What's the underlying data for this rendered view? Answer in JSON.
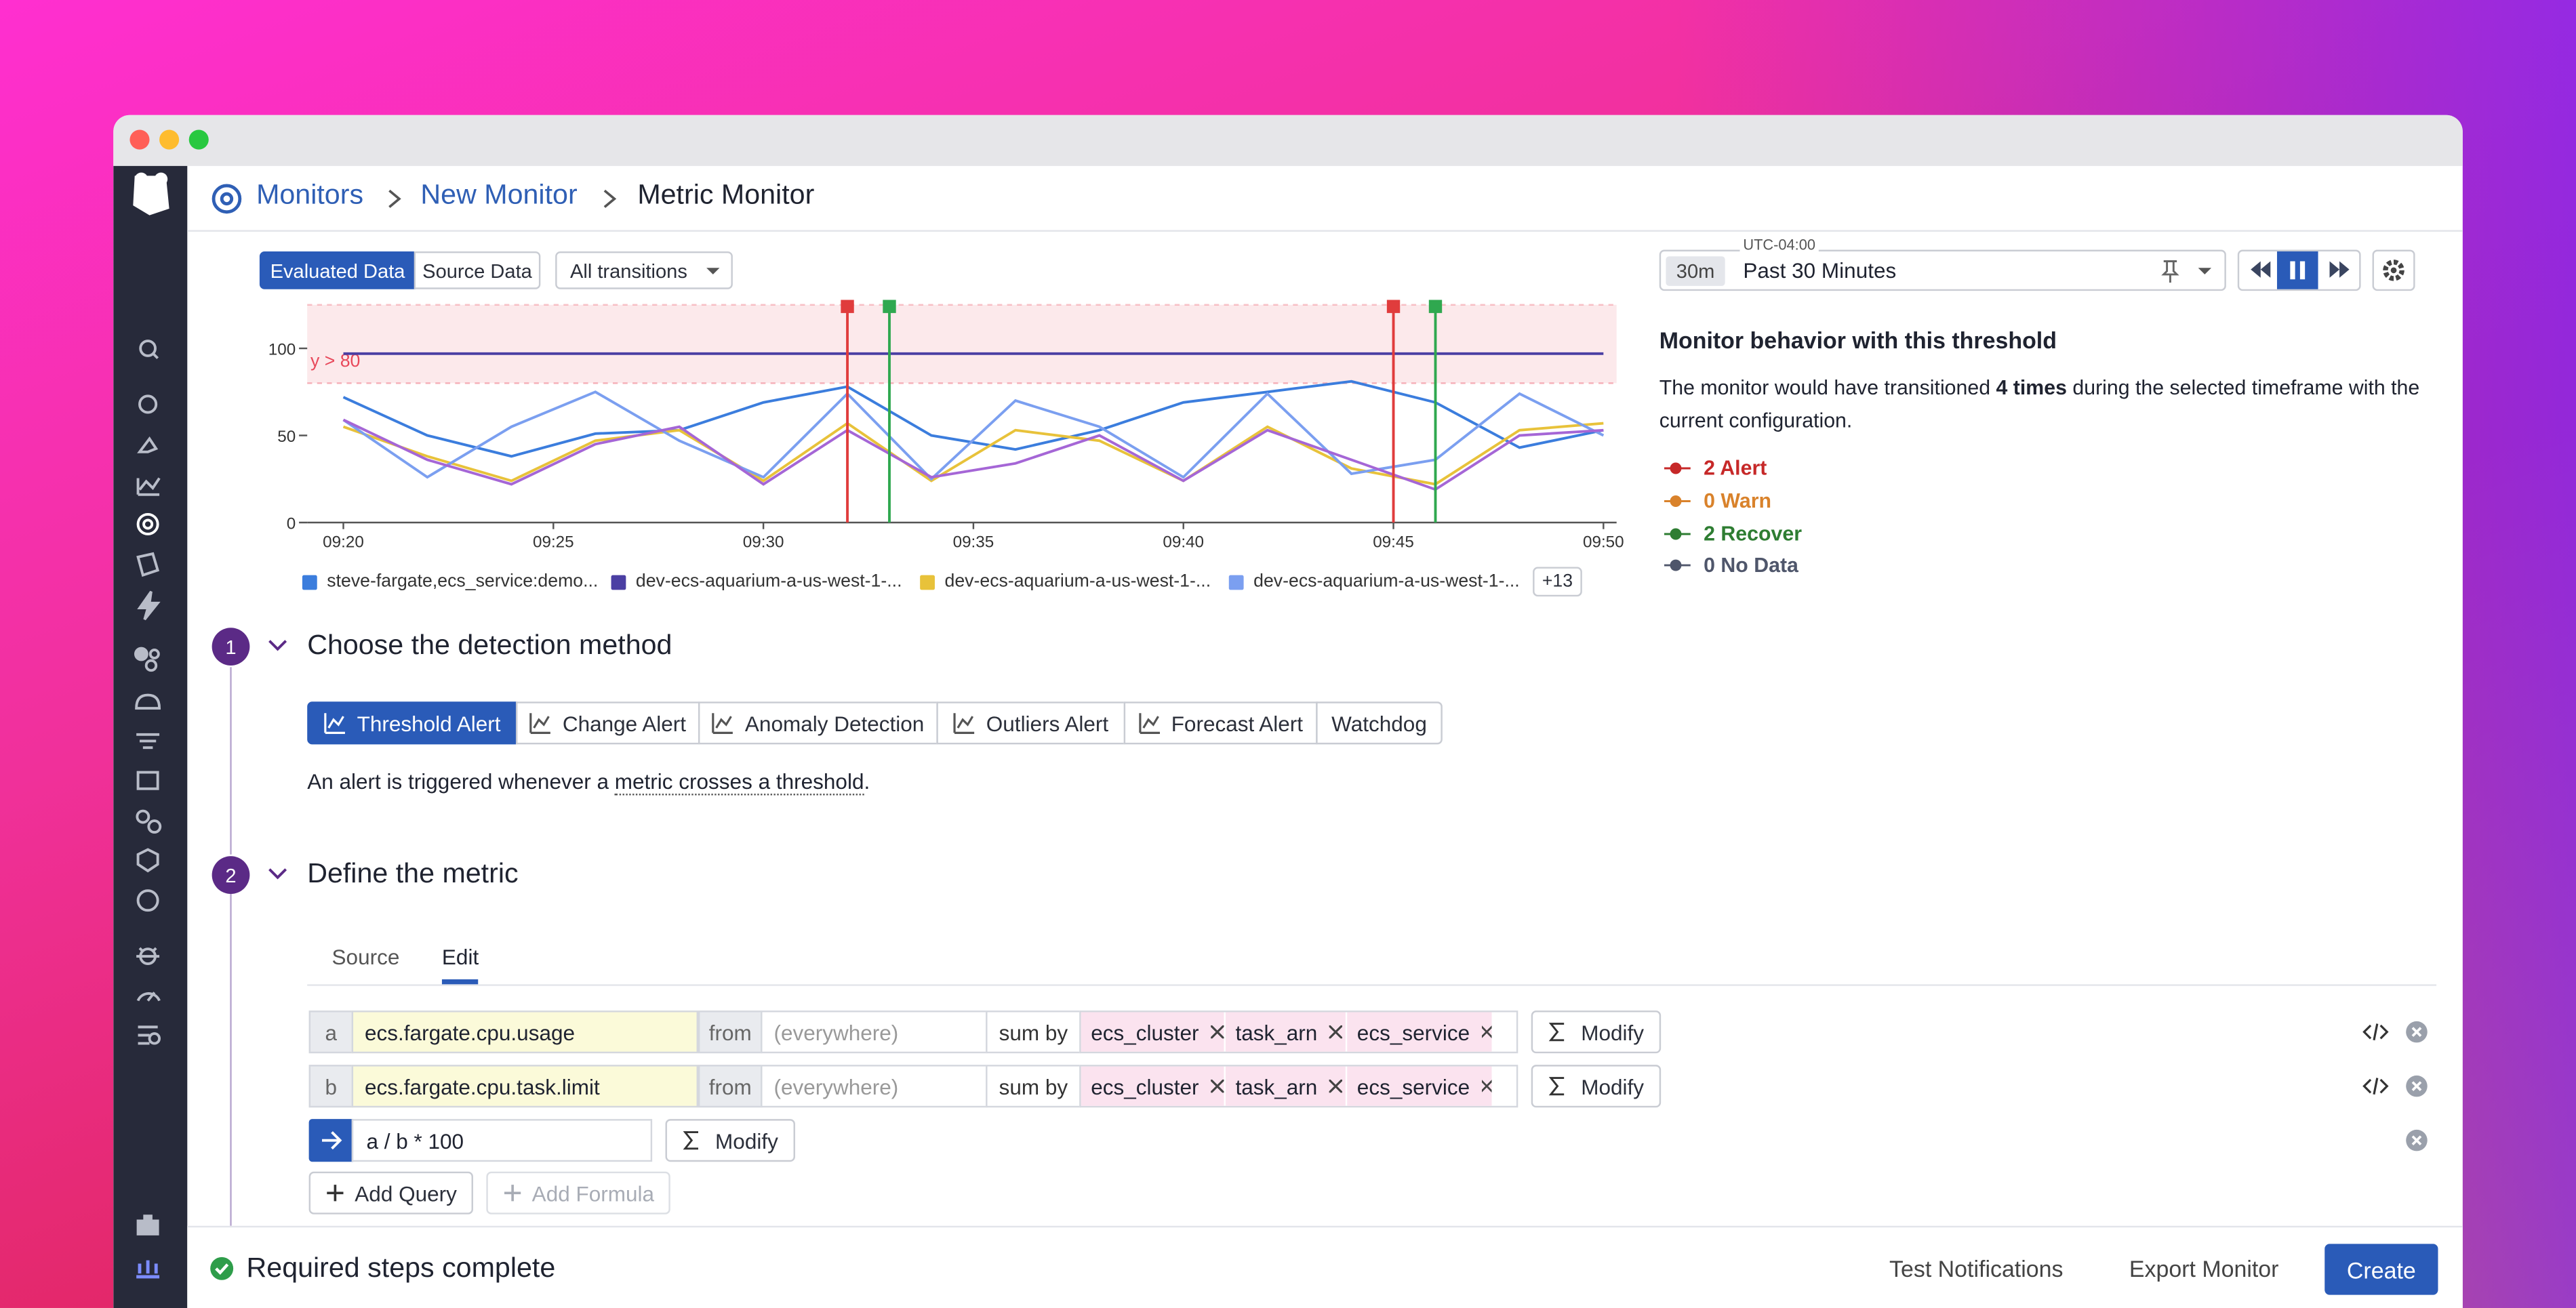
{
  "breadcrumb": [
    "Monitors",
    "New Monitor",
    "Metric Monitor"
  ],
  "view_tabs": [
    "Evaluated Data",
    "Source Data"
  ],
  "transitions_filter": "All transitions",
  "chart_data": {
    "type": "line",
    "x": [
      "09:20",
      "09:22",
      "09:24",
      "09:26",
      "09:28",
      "09:30",
      "09:32",
      "09:34",
      "09:36",
      "09:38",
      "09:40",
      "09:42",
      "09:44",
      "09:46",
      "09:48",
      "09:50"
    ],
    "xlim": [
      "09:20",
      "09:50"
    ],
    "xticks": [
      "09:20",
      "09:25",
      "09:30",
      "09:35",
      "09:40",
      "09:45",
      "09:50"
    ],
    "ylim": [
      0,
      125
    ],
    "yticks": [
      0,
      50,
      100
    ],
    "threshold": {
      "label": "y > 80",
      "value": 80,
      "color": "#e8485a"
    },
    "events": [
      {
        "x": "09:32",
        "color": "#e03c3c"
      },
      {
        "x": "09:33",
        "color": "#2fa84f"
      },
      {
        "x": "09:45",
        "color": "#e03c3c"
      },
      {
        "x": "09:46",
        "color": "#2fa84f"
      }
    ],
    "series": [
      {
        "name": "steve-fargate,ecs_service:demo...",
        "color": "#3b7ddd",
        "values": [
          72,
          50,
          38,
          51,
          53,
          69,
          78,
          50,
          42,
          53,
          69,
          75,
          81,
          69,
          43,
          53
        ]
      },
      {
        "name": "dev-ecs-aquarium-a-us-west-1-...",
        "color": "#4b3fa3",
        "values": [
          97,
          97,
          97,
          97,
          97,
          97,
          97,
          97,
          97,
          97,
          97,
          97,
          97,
          97,
          97,
          97
        ]
      },
      {
        "name": "dev-ecs-aquarium-a-us-west-1-...",
        "color": "#e8c23a",
        "values": [
          55,
          38,
          24,
          47,
          53,
          24,
          57,
          24,
          53,
          47,
          24,
          55,
          31,
          22,
          53,
          57
        ]
      },
      {
        "name": "dev-ecs-aquarium-a-us-west-1-...",
        "color": "#7b9ff0",
        "values": [
          59,
          26,
          55,
          75,
          47,
          26,
          74,
          25,
          70,
          55,
          26,
          74,
          28,
          36,
          74,
          50
        ]
      },
      {
        "color": "#a566d6",
        "values": [
          59,
          36,
          22,
          45,
          55,
          22,
          53,
          26,
          34,
          50,
          24,
          53,
          36,
          19,
          50,
          53
        ]
      }
    ],
    "legend_more": "+13"
  },
  "timeframe": {
    "timezone": "UTC-04:00",
    "short": "30m",
    "label": "Past 30 Minutes"
  },
  "behavior": {
    "title": "Monitor behavior with this threshold",
    "text_before": "The monitor would have transitioned ",
    "count": "4 times",
    "text_after": " during the selected timeframe with the current configuration.",
    "states": [
      {
        "label": "2 Alert",
        "color": "#c62828"
      },
      {
        "label": "0 Warn",
        "color": "#d9822b"
      },
      {
        "label": "2 Recover",
        "color": "#2e7d32"
      },
      {
        "label": "0 No Data",
        "color": "#4f566b"
      }
    ]
  },
  "steps": [
    {
      "number": "1",
      "title": "Choose the detection method",
      "methods": [
        "Threshold Alert",
        "Change Alert",
        "Anomaly Detection",
        "Outliers Alert",
        "Forecast Alert",
        "Watchdog"
      ],
      "description_before": "An alert is triggered whenever a ",
      "description_link": "metric crosses a threshold",
      "description_after": "."
    },
    {
      "number": "2",
      "title": "Define the metric",
      "tabs": [
        "Source",
        "Edit"
      ],
      "queries": [
        {
          "letter": "a",
          "metric": "ecs.fargate.cpu.usage",
          "from": "from",
          "scope": "(everywhere)",
          "aggregation": "sum by",
          "tags": [
            "ecs_cluster",
            "task_arn",
            "ecs_service"
          ],
          "modify": "Modify"
        },
        {
          "letter": "b",
          "metric": "ecs.fargate.cpu.task.limit",
          "from": "from",
          "scope": "(everywhere)",
          "aggregation": "sum by",
          "tags": [
            "ecs_cluster",
            "task_arn",
            "ecs_service"
          ],
          "modify": "Modify"
        }
      ],
      "formula": {
        "expression": "a / b * 100",
        "modify": "Modify"
      },
      "actions": [
        "Add Query",
        "Add Formula"
      ]
    }
  ],
  "footer": {
    "status": "Required steps complete",
    "actions": [
      "Test Notifications",
      "Export Monitor",
      "Create"
    ]
  }
}
